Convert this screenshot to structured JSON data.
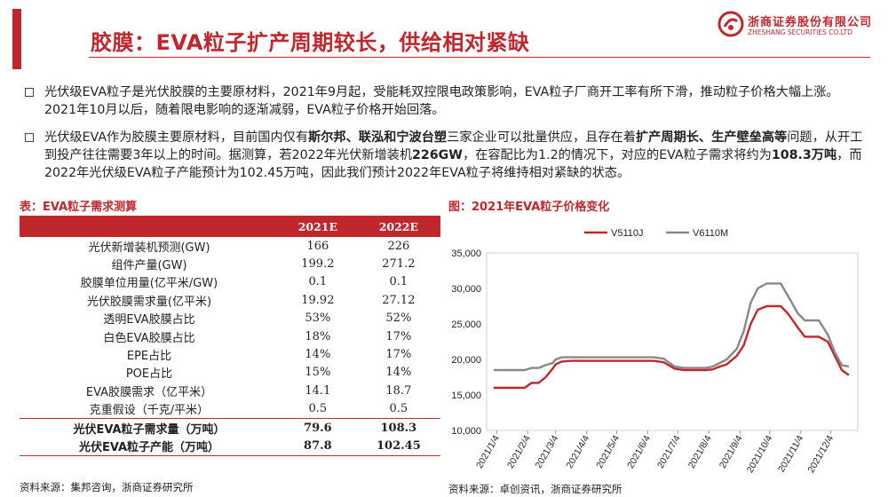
{
  "header": {
    "title": "胶膜：EVA粒子扩产周期较长，供给相对紧缺",
    "logo_cn": "浙商证券股份有限公司",
    "logo_en": "ZHESHANG SECURITIES CO.LTD",
    "accent_color": "#c0272d"
  },
  "bullets": {
    "b1": "光伏级EVA粒子是光伏胶膜的主要原材料，2021年9月起，受能耗双控限电政策影响，EVA粒子厂商开工率有所下滑，推动粒子价格大幅上涨。2021年10月以后，随着限电影响的逐渐减弱，EVA粒子价格开始回落。",
    "b2": {
      "p1": "光伏级EVA作为胶膜主要原材料，目前国内仅有",
      "p2": "斯尔邦、联泓和宁波台塑",
      "p3": "三家企业可以批量供应，且存在着",
      "p4": "扩产周期长、生产壁垒高等",
      "p5": "问题，从开工到投产往往需要3年以上的时间。据测算，若2022年光伏新增装机",
      "p6": "226GW",
      "p7": "，在容配比为1.2的情况下，对应的EVA粒子需求将约为",
      "p8": "108.3万吨",
      "p9": "，而2022年光伏级EVA粒子产能预计为102.45万吨，因此我们预计2022年EVA粒子将维持相对紧缺的状态。"
    }
  },
  "table": {
    "title": "表：EVA粒子需求测算",
    "headers": [
      "",
      "2021E",
      "2022E"
    ],
    "rows": [
      [
        "光伏新增装机预测(GW)",
        "166",
        "226"
      ],
      [
        "组件产量(GW)",
        "199.2",
        "271.2"
      ],
      [
        "胶膜单位用量(亿平米/GW)",
        "0.1",
        "0.1"
      ],
      [
        "光伏胶膜需求量(亿平米)",
        "19.92",
        "27.12"
      ],
      [
        "透明EVA胶膜占比",
        "53%",
        "52%"
      ],
      [
        "白色EVA胶膜占比",
        "18%",
        "17%"
      ],
      [
        "EPE占比",
        "14%",
        "17%"
      ],
      [
        "POE占比",
        "15%",
        "14%"
      ],
      [
        "EVA胶膜需求（亿平米）",
        "14.1",
        "18.7"
      ],
      [
        "克重假设（千克/平米）",
        "0.5",
        "0.5"
      ],
      [
        "光伏EVA粒子需求量（万吨）",
        "79.6",
        "108.3"
      ],
      [
        "光伏EVA粒子产能（万吨）",
        "87.8",
        "102.45"
      ]
    ],
    "source": "资料来源：集邦咨询，浙商证券研究所"
  },
  "chart_title": "图：2021年EVA粒子价格变化",
  "chart_source": "资料来源：卓创资讯，浙商证券研究所",
  "chart_data": {
    "type": "line",
    "title": "",
    "xlabel": "",
    "ylabel": "",
    "ylim": [
      10000,
      35000
    ],
    "yticks": [
      10000,
      15000,
      20000,
      25000,
      30000,
      35000
    ],
    "ytick_labels": [
      "10,000",
      "15,000",
      "20,000",
      "25,000",
      "30,000",
      "35,000"
    ],
    "xticks": [
      "2021/1/4",
      "2021/2/4",
      "2021/3/4",
      "2021/4/4",
      "2021/5/4",
      "2021/6/4",
      "2021/7/4",
      "2021/8/4",
      "2021/9/4",
      "2021/10/4",
      "2021/11/4",
      "2021/12/4"
    ],
    "x": [
      "2021/1/1",
      "2021/1/15",
      "2021/2/1",
      "2021/2/8",
      "2021/2/15",
      "2021/2/22",
      "2021/3/1",
      "2021/3/4",
      "2021/3/10",
      "2021/3/20",
      "2021/4/1",
      "2021/4/15",
      "2021/5/1",
      "2021/5/15",
      "2021/6/1",
      "2021/6/10",
      "2021/6/20",
      "2021/7/1",
      "2021/7/10",
      "2021/7/20",
      "2021/8/1",
      "2021/8/8",
      "2021/8/15",
      "2021/8/22",
      "2021/9/1",
      "2021/9/8",
      "2021/9/15",
      "2021/9/22",
      "2021/10/1",
      "2021/10/8",
      "2021/10/15",
      "2021/10/22",
      "2021/11/1",
      "2021/11/8",
      "2021/11/15",
      "2021/11/22",
      "2021/12/1",
      "2021/12/8",
      "2021/12/15",
      "2021/12/22"
    ],
    "series": [
      {
        "name": "V5110J",
        "color": "#c0272d",
        "values": [
          16000,
          16000,
          16000,
          16700,
          16700,
          17500,
          18700,
          19300,
          19700,
          19800,
          19800,
          19800,
          19800,
          19800,
          19800,
          19800,
          19600,
          18700,
          18500,
          18500,
          18500,
          18600,
          19000,
          19300,
          20500,
          22000,
          25000,
          27000,
          27500,
          27500,
          27500,
          26500,
          24500,
          23200,
          23200,
          23200,
          22500,
          20500,
          18500,
          17800
        ]
      },
      {
        "name": "V6110M",
        "color": "#888888",
        "values": [
          18500,
          18500,
          18500,
          18800,
          18800,
          19200,
          19500,
          20000,
          20300,
          20300,
          20300,
          20300,
          20300,
          20300,
          20300,
          20300,
          20100,
          19000,
          18800,
          18800,
          18800,
          19000,
          19500,
          20000,
          21500,
          24000,
          28000,
          30000,
          30700,
          30700,
          30700,
          29000,
          26500,
          25500,
          25500,
          25500,
          23500,
          21000,
          19200,
          19000
        ]
      }
    ]
  }
}
